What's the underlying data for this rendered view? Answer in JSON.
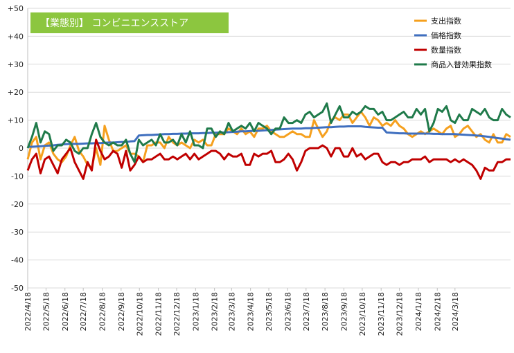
{
  "chart_data": {
    "type": "line",
    "title": "【業態別】 コンビニエンスストア",
    "xlabel": "",
    "ylabel": "",
    "ylim": [
      -50,
      50
    ],
    "yticks": [
      50,
      40,
      30,
      20,
      10,
      0,
      -10,
      -20,
      -30,
      -40,
      -50
    ],
    "ytick_labels": [
      "+50",
      "+40",
      "+30",
      "+20",
      "+10",
      "0",
      "-10",
      "-20",
      "-30",
      "-40",
      "-50"
    ],
    "x_start": "2022-04-18",
    "xtick_labels": [
      "2022/4/18",
      "2022/5/18",
      "2022/6/18",
      "2022/7/18",
      "2022/8/18",
      "2022/9/18",
      "2022/10/18",
      "2022/11/18",
      "2022/12/18",
      "2023/1/18",
      "2023/2/18",
      "2023/3/18",
      "2023/4/18",
      "2023/5/18",
      "2023/6/18",
      "2023/7/18",
      "2023/8/18",
      "2023/9/18",
      "2023/10/18",
      "2023/11/18",
      "2023/12/18",
      "2024/1/18",
      "2024/2/18",
      "2024/3/18"
    ],
    "grid": true,
    "legend_position": "top-right",
    "series": [
      {
        "name": "支出指数",
        "color": "#f5a01e",
        "values": [
          -4,
          2,
          4,
          -4,
          1,
          2,
          -2,
          -4,
          -5,
          -3,
          1,
          4,
          -1,
          -3,
          -6,
          -7,
          0,
          -6,
          8,
          3,
          -1,
          -1,
          0,
          1,
          -2,
          -2,
          -3,
          -5,
          1,
          1,
          2,
          2,
          0,
          4,
          2,
          1,
          2,
          1,
          0,
          3,
          2,
          3,
          1,
          1,
          5,
          5,
          5,
          7,
          6,
          5,
          7,
          5,
          6,
          4,
          7,
          7,
          8,
          6,
          5,
          4,
          4,
          5,
          6,
          5,
          5,
          4,
          4,
          10,
          7,
          4,
          6,
          10,
          11,
          10,
          12,
          12,
          9,
          11,
          13,
          11,
          8,
          11,
          10,
          8,
          9,
          8,
          10,
          8,
          7,
          5,
          4,
          5,
          6,
          5,
          6,
          7,
          6,
          5,
          7,
          8,
          4,
          5,
          7,
          8,
          6,
          4,
          5,
          3,
          2,
          5,
          2,
          2,
          5,
          4
        ]
      },
      {
        "name": "価格指数",
        "color": "#3f6fbf",
        "values": [
          0.5,
          0.5,
          0.6,
          0.7,
          0.8,
          0.9,
          1,
          1.2,
          1.3,
          1.4,
          1.5,
          1.5,
          1.5,
          1.6,
          1.7,
          1.7,
          1.8,
          1.8,
          1.9,
          2,
          2,
          2.1,
          2.2,
          2.2,
          2.4,
          2.5,
          4.5,
          4.6,
          4.7,
          4.7,
          4.8,
          4.9,
          5,
          5,
          5.1,
          5.1,
          5.2,
          5.2,
          5.3,
          5.3,
          5.3,
          5.4,
          5.4,
          5.5,
          5.5,
          5.6,
          5.6,
          5.7,
          5.8,
          5.9,
          6,
          6,
          6.1,
          6.2,
          6.2,
          6.3,
          6.4,
          6.5,
          6.6,
          6.7,
          6.8,
          6.9,
          7,
          7,
          7,
          7.1,
          7.1,
          7.2,
          7.3,
          7.4,
          7.5,
          7.5,
          7.6,
          7.7,
          7.7,
          7.8,
          7.8,
          7.8,
          7.8,
          7.6,
          7.5,
          7.4,
          7.3,
          7.3,
          5.6,
          5.5,
          5.4,
          5.3,
          5.3,
          5.2,
          5.2,
          5.2,
          5.2,
          5.2,
          5.2,
          5.1,
          5.1,
          5,
          5,
          5,
          5,
          4.9,
          4.8,
          4.7,
          4.6,
          4.5,
          4.4,
          4.2,
          4,
          3.8,
          3.6,
          3.4,
          3.2,
          3
        ]
      },
      {
        "name": "数量指数",
        "color": "#c00000",
        "values": [
          -8,
          -4,
          -2,
          -9,
          -4,
          -3,
          -6,
          -9,
          -4,
          -2,
          0,
          -5,
          -8,
          -11,
          -5,
          -8,
          3,
          -1,
          -4,
          -3,
          -1,
          -2,
          -7,
          -1,
          -8,
          -6,
          -3,
          -5,
          -4,
          -4,
          -3,
          -2,
          -4,
          -4,
          -3,
          -4,
          -3,
          -2,
          -4,
          -2,
          -4,
          -3,
          -2,
          -1,
          -1,
          -2,
          -4,
          -2,
          -3,
          -3,
          -2,
          -6,
          -6,
          -2,
          -3,
          -2,
          -2,
          -1,
          -5,
          -5,
          -4,
          -2,
          -4,
          -8,
          -5,
          -1,
          0,
          0,
          0,
          1,
          0,
          -3,
          0,
          0,
          -3,
          -3,
          0,
          -3,
          -2,
          -4,
          -3,
          -2,
          -2,
          -5,
          -6,
          -5,
          -5,
          -6,
          -5,
          -5,
          -4,
          -4,
          -4,
          -3,
          -5,
          -4,
          -4,
          -4,
          -4,
          -5,
          -4,
          -5,
          -4,
          -5,
          -6,
          -8,
          -11,
          -7,
          -8,
          -8,
          -5,
          -5,
          -4,
          -4
        ]
      },
      {
        "name": "商品入替効果指数",
        "color": "#1f7a4a",
        "values": [
          0,
          4,
          9,
          2,
          6,
          5,
          -1,
          1,
          1,
          3,
          2,
          -1,
          -2,
          0,
          0,
          5,
          9,
          4,
          2,
          1,
          2,
          1,
          1,
          3,
          -2,
          -5,
          3,
          1,
          2,
          3,
          1,
          5,
          2,
          2,
          3,
          1,
          5,
          2,
          6,
          1,
          1,
          0,
          7,
          7,
          4,
          6,
          5,
          9,
          6,
          7,
          8,
          7,
          9,
          6,
          9,
          8,
          7,
          5,
          7,
          7,
          11,
          9,
          9,
          10,
          9,
          12,
          13,
          11,
          12,
          13,
          16,
          9,
          12,
          15,
          11,
          11,
          13,
          12,
          13,
          15,
          14,
          14,
          12,
          13,
          10,
          10,
          11,
          12,
          13,
          11,
          11,
          14,
          12,
          14,
          6,
          9,
          14,
          13,
          15,
          10,
          9,
          12,
          10,
          10,
          14,
          13,
          12,
          14,
          11,
          10,
          10,
          14,
          12,
          11
        ]
      }
    ]
  }
}
